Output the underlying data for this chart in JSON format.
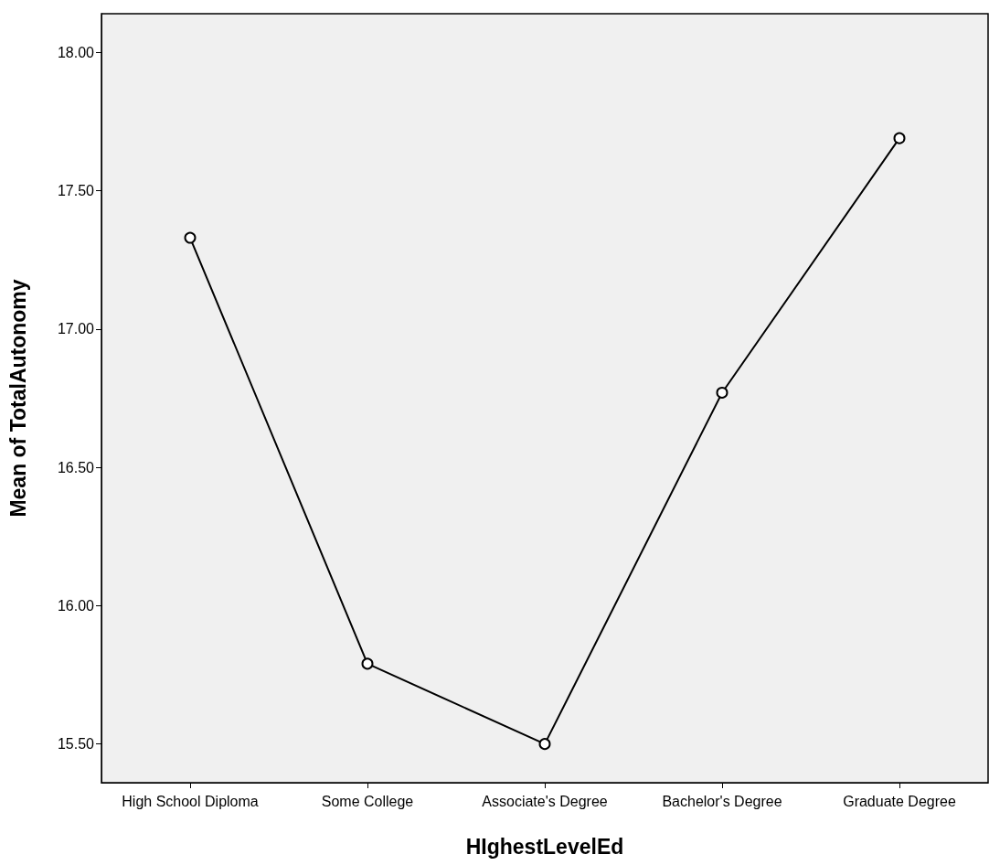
{
  "chart_data": {
    "type": "line",
    "xlabel": "HIghestLevelEd",
    "ylabel": "Mean of TotalAutonomy",
    "categories": [
      "High School Diploma",
      "Some College",
      "Associate's Degree",
      "Bachelor's Degree",
      "Graduate Degree"
    ],
    "values": [
      17.33,
      15.79,
      15.5,
      16.77,
      17.69
    ],
    "color": "#000000",
    "ylim": [
      15.36,
      18.14
    ],
    "yticks": [
      {
        "value": 15.5,
        "label": "15.50"
      },
      {
        "value": 16,
        "label": "16.00"
      },
      {
        "value": 16.5,
        "label": "16.50"
      },
      {
        "value": 17,
        "label": "17.00"
      },
      {
        "value": 17.5,
        "label": "17.50"
      },
      {
        "value": 18,
        "label": "18.00"
      }
    ],
    "grid": false,
    "marker": "circle",
    "line_style": "solid"
  }
}
